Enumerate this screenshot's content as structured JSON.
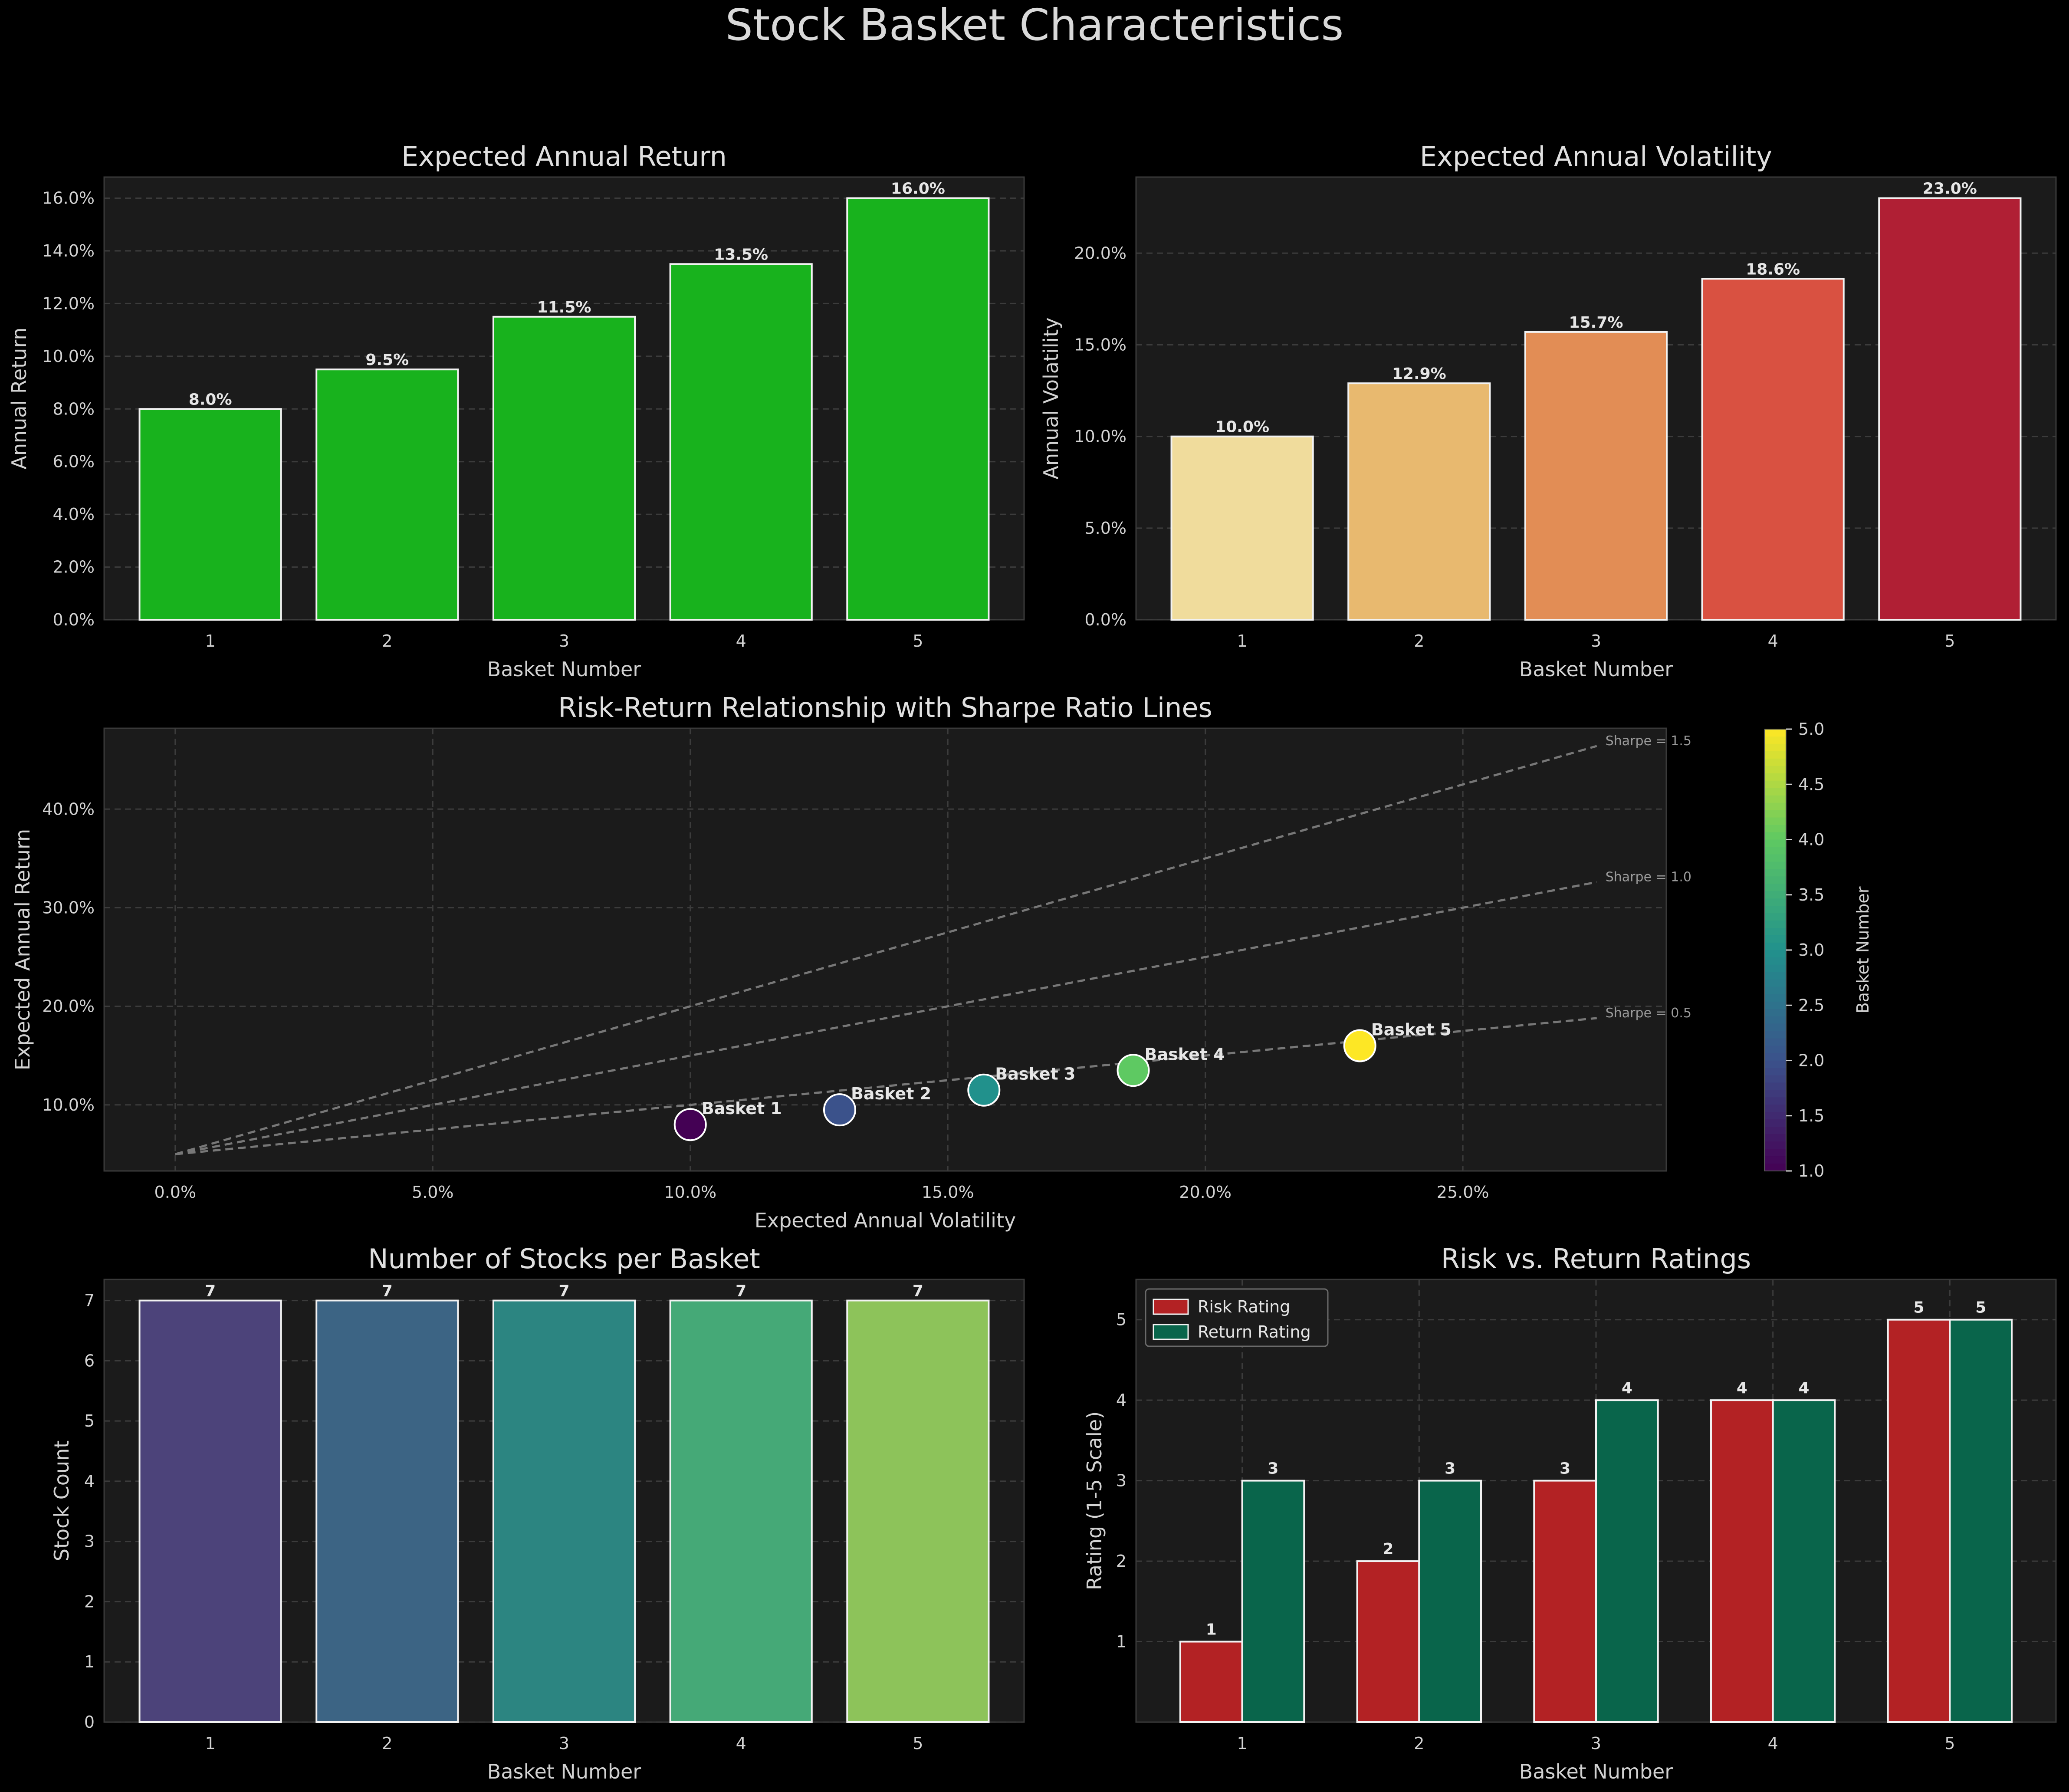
{
  "figure": {
    "title": "Stock Basket Characteristics",
    "colors": {
      "background": "#000000",
      "axes": "#1b1b1b",
      "text": "#d2d2d2"
    }
  },
  "chart_data": [
    {
      "id": "return",
      "type": "bar",
      "title": "Expected Annual Return",
      "xlabel": "Basket Number",
      "ylabel": "Annual Return",
      "categories": [
        "1",
        "2",
        "3",
        "4",
        "5"
      ],
      "values": [
        0.08,
        0.095,
        0.115,
        0.135,
        0.16
      ],
      "value_labels": [
        "8.0%",
        "9.5%",
        "11.5%",
        "13.5%",
        "16.0%"
      ],
      "ylim": [
        0,
        0.168
      ],
      "yticks": [
        0,
        0.02,
        0.04,
        0.06,
        0.08,
        0.1,
        0.12,
        0.14,
        0.16
      ],
      "ytick_labels": [
        "0.0%",
        "2.0%",
        "4.0%",
        "6.0%",
        "8.0%",
        "10.0%",
        "12.0%",
        "14.0%",
        "16.0%"
      ],
      "colors": [
        "#18b21d",
        "#18b21d",
        "#18b21d",
        "#18b21d",
        "#18b21d"
      ],
      "grid": true
    },
    {
      "id": "volatility",
      "type": "bar",
      "title": "Expected Annual Volatility",
      "xlabel": "Basket Number",
      "ylabel": "Annual Volatility",
      "categories": [
        "1",
        "2",
        "3",
        "4",
        "5"
      ],
      "values": [
        0.1,
        0.129,
        0.157,
        0.186,
        0.23
      ],
      "value_labels": [
        "10.0%",
        "12.9%",
        "15.7%",
        "18.6%",
        "23.0%"
      ],
      "ylim": [
        0,
        0.2415
      ],
      "yticks": [
        0,
        0.05,
        0.1,
        0.15,
        0.2
      ],
      "ytick_labels": [
        "0.0%",
        "5.0%",
        "10.0%",
        "15.0%",
        "20.0%"
      ],
      "colors": [
        "#f0dc9c",
        "#e8b96f",
        "#e28d55",
        "#d95141",
        "#b01f34"
      ],
      "grid": true
    },
    {
      "id": "risk_return",
      "type": "scatter",
      "title": "Risk-Return Relationship with Sharpe Ratio Lines",
      "xlabel": "Expected Annual Volatility",
      "ylabel": "Expected Annual Return",
      "xlim": [
        -0.0138,
        0.2895
      ],
      "ylim": [
        0.033,
        0.482
      ],
      "xticks": [
        0,
        0.05,
        0.1,
        0.15,
        0.2,
        0.25
      ],
      "xtick_labels": [
        "0.0%",
        "5.0%",
        "10.0%",
        "15.0%",
        "20.0%",
        "25.0%"
      ],
      "yticks": [
        0.1,
        0.2,
        0.3,
        0.4
      ],
      "ytick_labels": [
        "10.0%",
        "20.0%",
        "30.0%",
        "40.0%"
      ],
      "points": [
        {
          "label": "Basket 1",
          "x": 0.1,
          "y": 0.08,
          "basket": 1
        },
        {
          "label": "Basket 2",
          "x": 0.129,
          "y": 0.095,
          "basket": 2
        },
        {
          "label": "Basket 3",
          "x": 0.157,
          "y": 0.115,
          "basket": 3
        },
        {
          "label": "Basket 4",
          "x": 0.186,
          "y": 0.135,
          "basket": 4
        },
        {
          "label": "Basket 5",
          "x": 0.23,
          "y": 0.16,
          "basket": 5
        }
      ],
      "sharpe_lines": [
        {
          "label": "Sharpe = 0.5",
          "sharpe": 0.5
        },
        {
          "label": "Sharpe = 1.0",
          "sharpe": 1.0
        },
        {
          "label": "Sharpe = 1.5",
          "sharpe": 1.5
        }
      ],
      "risk_free_rate": 0.05,
      "sharpe_line_x_end": 0.276,
      "colorbar": {
        "label": "Basket Number",
        "range": [
          1,
          5
        ],
        "ticks": [
          1.0,
          1.5,
          2.0,
          2.5,
          3.0,
          3.5,
          4.0,
          4.5,
          5.0
        ],
        "tick_labels": [
          "1.0",
          "1.5",
          "2.0",
          "2.5",
          "3.0",
          "3.5",
          "4.0",
          "4.5",
          "5.0"
        ],
        "colormap": "viridis"
      },
      "grid": true
    },
    {
      "id": "stocks",
      "type": "bar",
      "title": "Number of Stocks per Basket",
      "xlabel": "Basket Number",
      "ylabel": "Stock Count",
      "categories": [
        "1",
        "2",
        "3",
        "4",
        "5"
      ],
      "values": [
        7,
        7,
        7,
        7,
        7
      ],
      "value_labels": [
        "7",
        "7",
        "7",
        "7",
        "7"
      ],
      "ylim": [
        0,
        7.35
      ],
      "yticks": [
        0,
        1,
        2,
        3,
        4,
        5,
        6,
        7
      ],
      "ytick_labels": [
        "0",
        "1",
        "2",
        "3",
        "4",
        "5",
        "6",
        "7"
      ],
      "colors": [
        "#4c437a",
        "#3c6484",
        "#2c8581",
        "#45a977",
        "#8dc35a"
      ],
      "grid": true
    },
    {
      "id": "ratings",
      "type": "bar",
      "title": "Risk vs. Return Ratings",
      "xlabel": "Basket Number",
      "ylabel": "Rating (1-5 Scale)",
      "categories": [
        "1",
        "2",
        "3",
        "4",
        "5"
      ],
      "series": [
        {
          "name": "Risk Rating",
          "values": [
            1,
            2,
            3,
            4,
            5
          ],
          "color": "#b32224"
        },
        {
          "name": "Return Rating",
          "values": [
            3,
            3,
            4,
            4,
            5
          ],
          "color": "#09654b"
        }
      ],
      "ylim": [
        0,
        5.5
      ],
      "yticks": [
        1,
        2,
        3,
        4,
        5
      ],
      "ytick_labels": [
        "1",
        "2",
        "3",
        "4",
        "5"
      ],
      "legend": "top-left",
      "grid": true
    }
  ]
}
